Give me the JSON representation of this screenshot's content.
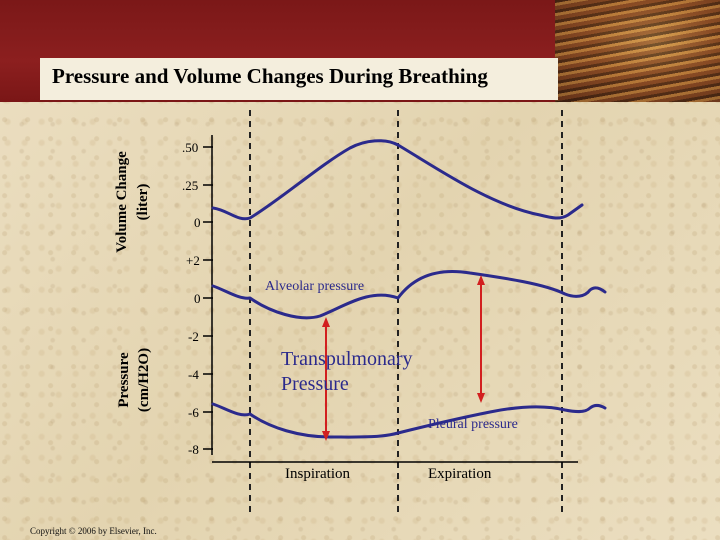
{
  "title": "Pressure and Volume Changes During Breathing",
  "copyright": "Copyright © 2006 by Elsevier, Inc.",
  "volume_axis": {
    "label_line1": "Volume Change",
    "label_line2": "(liter)",
    "ticks": [
      ".50",
      ".25",
      "0"
    ]
  },
  "pressure_axis": {
    "label_line1": "Pressure",
    "label_line2": "(cm/H2O)",
    "ticks": [
      "+2",
      "0",
      "-2",
      "-4",
      "-6",
      "-8"
    ]
  },
  "annotations": {
    "alveolar": "Alveolar pressure",
    "transpulmonary_line1": "Transpulmonary",
    "transpulmonary_line2": "Pressure",
    "pleural": "Pleural pressure"
  },
  "phases": {
    "inspiration": "Inspiration",
    "expiration": "Expiration"
  },
  "colors": {
    "curve": "#2b2a8c",
    "arrow": "#d21f1f",
    "banner": "#861c1c"
  }
}
